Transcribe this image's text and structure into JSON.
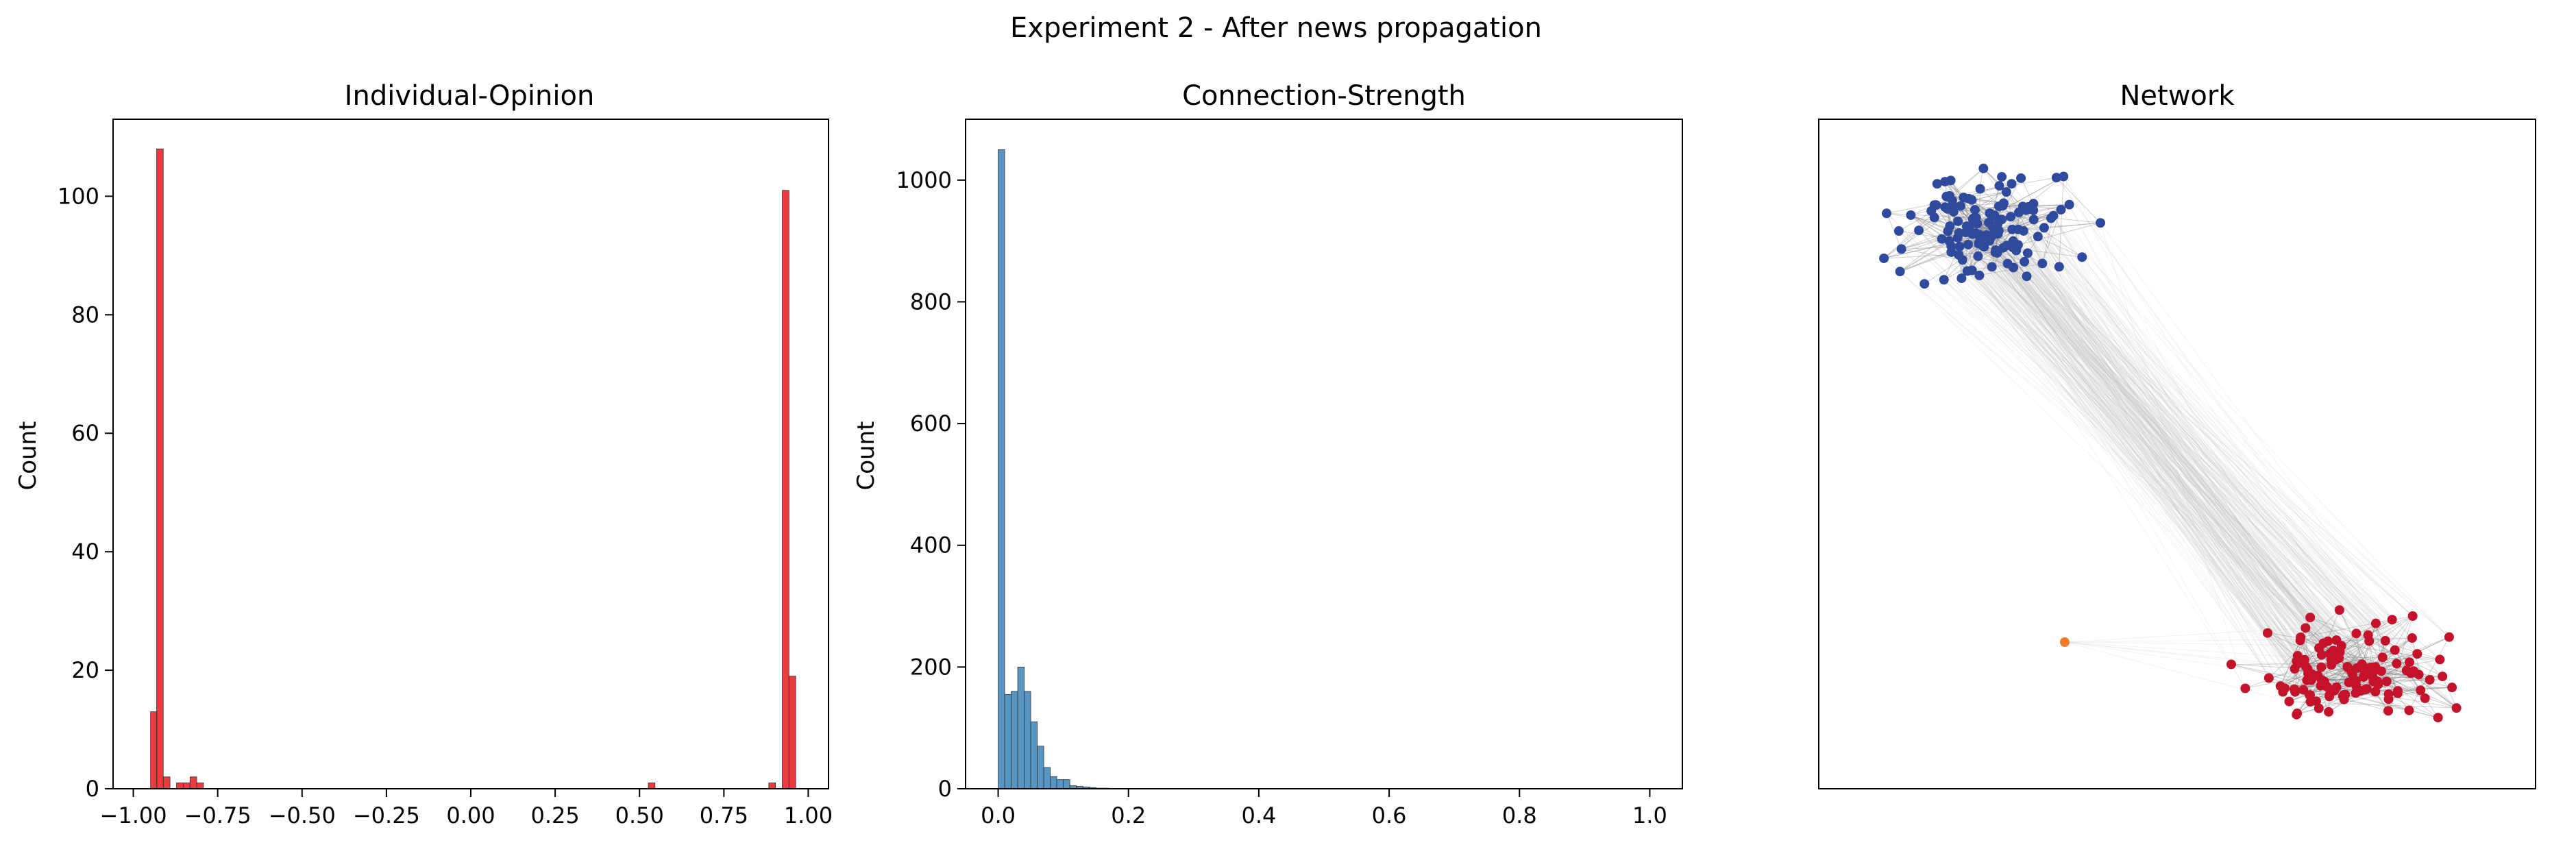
{
  "figure": {
    "title": "Experiment 2 - After news propagation"
  },
  "chart_data": [
    {
      "type": "bar",
      "title": "Individual-Opinion",
      "xlabel": "",
      "ylabel": "Count",
      "xlim": [
        -1.06,
        1.06
      ],
      "ylim": [
        0,
        113
      ],
      "xticks": [
        "−1.00",
        "−0.75",
        "−0.50",
        "−0.25",
        "0.00",
        "0.25",
        "0.50",
        "0.75",
        "1.00"
      ],
      "yticks": [
        "0",
        "20",
        "40",
        "60",
        "80",
        "100"
      ],
      "bin_width": 0.0198,
      "bins": [
        {
          "x": -0.949,
          "count": 13
        },
        {
          "x": -0.931,
          "count": 108
        },
        {
          "x": -0.911,
          "count": 2
        },
        {
          "x": -0.872,
          "count": 1
        },
        {
          "x": -0.852,
          "count": 1
        },
        {
          "x": -0.832,
          "count": 2
        },
        {
          "x": -0.812,
          "count": 1
        },
        {
          "x": 0.526,
          "count": 1
        },
        {
          "x": 0.883,
          "count": 1
        },
        {
          "x": 0.923,
          "count": 101
        },
        {
          "x": 0.943,
          "count": 19
        }
      ],
      "color": "#e41a1c",
      "grid": false
    },
    {
      "type": "bar",
      "title": "Connection-Strength",
      "xlabel": "",
      "ylabel": "Count",
      "xlim": [
        -0.05,
        1.05
      ],
      "ylim": [
        0,
        1100
      ],
      "xticks": [
        "0.0",
        "0.2",
        "0.4",
        "0.6",
        "0.8",
        "1.0"
      ],
      "yticks": [
        "0",
        "200",
        "400",
        "600",
        "800",
        "1000"
      ],
      "bin_width": 0.01,
      "bins": [
        {
          "x": 0.0,
          "count": 1050
        },
        {
          "x": 0.01,
          "count": 155
        },
        {
          "x": 0.02,
          "count": 160
        },
        {
          "x": 0.03,
          "count": 200
        },
        {
          "x": 0.04,
          "count": 160
        },
        {
          "x": 0.05,
          "count": 110
        },
        {
          "x": 0.06,
          "count": 70
        },
        {
          "x": 0.07,
          "count": 35
        },
        {
          "x": 0.08,
          "count": 20
        },
        {
          "x": 0.09,
          "count": 15
        },
        {
          "x": 0.1,
          "count": 15
        },
        {
          "x": 0.11,
          "count": 5
        },
        {
          "x": 0.12,
          "count": 4
        },
        {
          "x": 0.13,
          "count": 3
        },
        {
          "x": 0.14,
          "count": 2
        },
        {
          "x": 0.15,
          "count": 1
        },
        {
          "x": 0.16,
          "count": 1
        }
      ],
      "color": "#3a82b8",
      "grid": false
    },
    {
      "type": "scatter",
      "title": "Network",
      "xlabel": "",
      "ylabel": "",
      "description": "network graph: blue opinion cluster at upper-left, red opinion cluster at lower-right, light grey edges between them",
      "clusters": [
        {
          "name": "negative-opinion",
          "color": "#2f4a9c",
          "node_count": 126
        },
        {
          "name": "positive-opinion",
          "color": "#c3122a",
          "node_count": 122
        }
      ],
      "outlier_color": "#f27a2a",
      "edge_color": "#bdbdbd"
    }
  ]
}
